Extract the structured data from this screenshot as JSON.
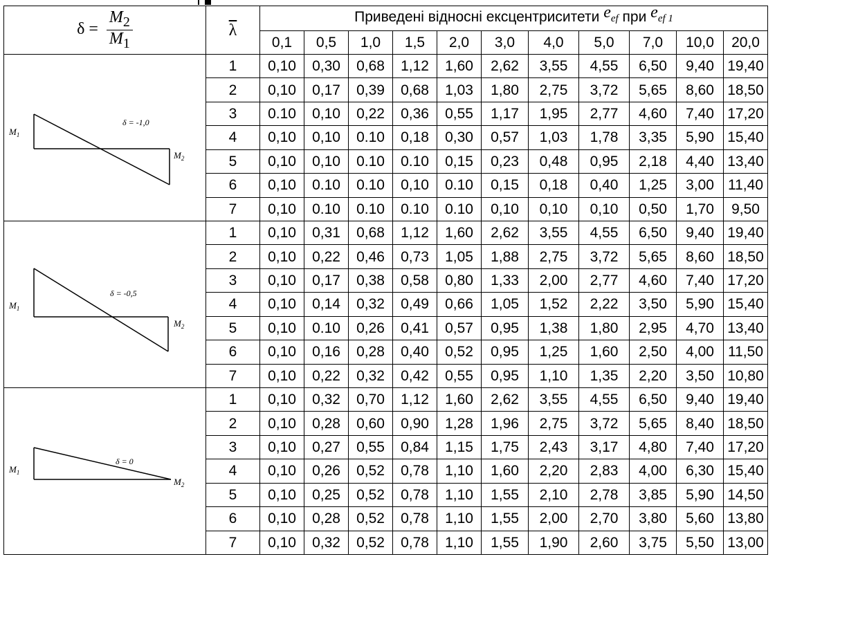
{
  "table": {
    "delta_label": "δ =",
    "delta_num": "M",
    "delta_num_sub": "2",
    "delta_den": "M",
    "delta_den_sub": "1",
    "lambda_label": "λ",
    "title_text": "Приведені відносні ексцентриситети",
    "title_e1": "e",
    "title_e1_sub": "ef",
    "title_mid": "при",
    "title_e2": "e",
    "title_e2_sub": "ef 1",
    "columns": [
      "0,1",
      "0,5",
      "1,0",
      "1,5",
      "2,0",
      "3,0",
      "4,0",
      "5,0",
      "7,0",
      "10,0",
      "20,0"
    ],
    "groups": [
      {
        "delta_text": "δ = -1,0",
        "m1": "M",
        "m1_sub": "1",
        "m2": "M",
        "m2_sub": "2",
        "rows": [
          {
            "lambda": "1",
            "values": [
              "0,10",
              "0,30",
              "0,68",
              "1,12",
              "1,60",
              "2,62",
              "3,55",
              "4,55",
              "6,50",
              "9,40",
              "19,40"
            ]
          },
          {
            "lambda": "2",
            "values": [
              "0,10",
              "0,17",
              "0,39",
              "0,68",
              "1,03",
              "1,80",
              "2,75",
              "3,72",
              "5,65",
              "8,60",
              "18,50"
            ]
          },
          {
            "lambda": "3",
            "values": [
              "0.10",
              "0,10",
              "0,22",
              "0,36",
              "0,55",
              "1,17",
              "1,95",
              "2,77",
              "4,60",
              "7,40",
              "17,20"
            ]
          },
          {
            "lambda": "4",
            "values": [
              "0,10",
              "0,10",
              "0.10",
              "0,18",
              "0,30",
              "0,57",
              "1,03",
              "1,78",
              "3,35",
              "5,90",
              "15,40"
            ]
          },
          {
            "lambda": "5",
            "values": [
              "0,10",
              "0,10",
              "0.10",
              "0.10",
              "0,15",
              "0,23",
              "0,48",
              "0,95",
              "2,18",
              "4,40",
              "13,40"
            ]
          },
          {
            "lambda": "6",
            "values": [
              "0,10",
              "0.10",
              "0.10",
              "0,10",
              "0.10",
              "0,15",
              "0,18",
              "0,40",
              "1,25",
              "3,00",
              "11,40"
            ]
          },
          {
            "lambda": "7",
            "values": [
              "0,10",
              "0.10",
              "0.10",
              "0.10",
              "0.10",
              "0,10",
              "0,10",
              "0,10",
              "0,50",
              "1,70",
              "9,50"
            ]
          }
        ]
      },
      {
        "delta_text": "δ = -0,5",
        "m1": "M",
        "m1_sub": "1",
        "m2": "M",
        "m2_sub": "2",
        "rows": [
          {
            "lambda": "1",
            "values": [
              "0,10",
              "0,31",
              "0,68",
              "1,12",
              "1,60",
              "2,62",
              "3,55",
              "4,55",
              "6,50",
              "9,40",
              "19,40"
            ]
          },
          {
            "lambda": "2",
            "values": [
              "0,10",
              "0,22",
              "0,46",
              "0,73",
              "1,05",
              "1,88",
              "2,75",
              "3,72",
              "5,65",
              "8,60",
              "18,50"
            ]
          },
          {
            "lambda": "3",
            "values": [
              "0,10",
              "0,17",
              "0,38",
              "0,58",
              "0,80",
              "1,33",
              "2,00",
              "2,77",
              "4,60",
              "7,40",
              "17,20"
            ]
          },
          {
            "lambda": "4",
            "values": [
              "0,10",
              "0,14",
              "0,32",
              "0,49",
              "0,66",
              "1,05",
              "1,52",
              "2,22",
              "3,50",
              "5,90",
              "15,40"
            ]
          },
          {
            "lambda": "5",
            "values": [
              "0,10",
              "0.10",
              "0,26",
              "0,41",
              "0,57",
              "0,95",
              "1,38",
              "1,80",
              "2,95",
              "4,70",
              "13,40"
            ]
          },
          {
            "lambda": "6",
            "values": [
              "0,10",
              "0,16",
              "0,28",
              "0,40",
              "0,52",
              "0,95",
              "1,25",
              "1,60",
              "2,50",
              "4,00",
              "11,50"
            ]
          },
          {
            "lambda": "7",
            "values": [
              "0,10",
              "0,22",
              "0,32",
              "0,42",
              "0,55",
              "0,95",
              "1,10",
              "1,35",
              "2,20",
              "3,50",
              "10,80"
            ]
          }
        ]
      },
      {
        "delta_text": "δ = 0",
        "m1": "M",
        "m1_sub": "1",
        "m2": "M",
        "m2_sub": "2",
        "rows": [
          {
            "lambda": "1",
            "values": [
              "0,10",
              "0,32",
              "0,70",
              "1,12",
              "1,60",
              "2,62",
              "3,55",
              "4,55",
              "6,50",
              "9,40",
              "19,40"
            ]
          },
          {
            "lambda": "2",
            "values": [
              "0,10",
              "0,28",
              "0,60",
              "0,90",
              "1,28",
              "1,96",
              "2,75",
              "3,72",
              "5,65",
              "8,40",
              "18,50"
            ]
          },
          {
            "lambda": "3",
            "values": [
              "0,10",
              "0,27",
              "0,55",
              "0,84",
              "1,15",
              "1,75",
              "2,43",
              "3,17",
              "4,80",
              "7,40",
              "17,20"
            ]
          },
          {
            "lambda": "4",
            "values": [
              "0,10",
              "0,26",
              "0,52",
              "0,78",
              "1,10",
              "1,60",
              "2,20",
              "2,83",
              "4,00",
              "6,30",
              "15,40"
            ]
          },
          {
            "lambda": "5",
            "values": [
              "0,10",
              "0,25",
              "0,52",
              "0,78",
              "1,10",
              "1,55",
              "2,10",
              "2,78",
              "3,85",
              "5,90",
              "14,50"
            ]
          },
          {
            "lambda": "6",
            "values": [
              "0,10",
              "0,28",
              "0,52",
              "0,78",
              "1,10",
              "1,55",
              "2,00",
              "2,70",
              "3,80",
              "5,60",
              "13,80"
            ]
          },
          {
            "lambda": "7",
            "values": [
              "0,10",
              "0,32",
              "0,52",
              "0,78",
              "1,10",
              "1,55",
              "1,90",
              "2,60",
              "3,75",
              "5,50",
              "13,00"
            ]
          }
        ]
      }
    ]
  }
}
